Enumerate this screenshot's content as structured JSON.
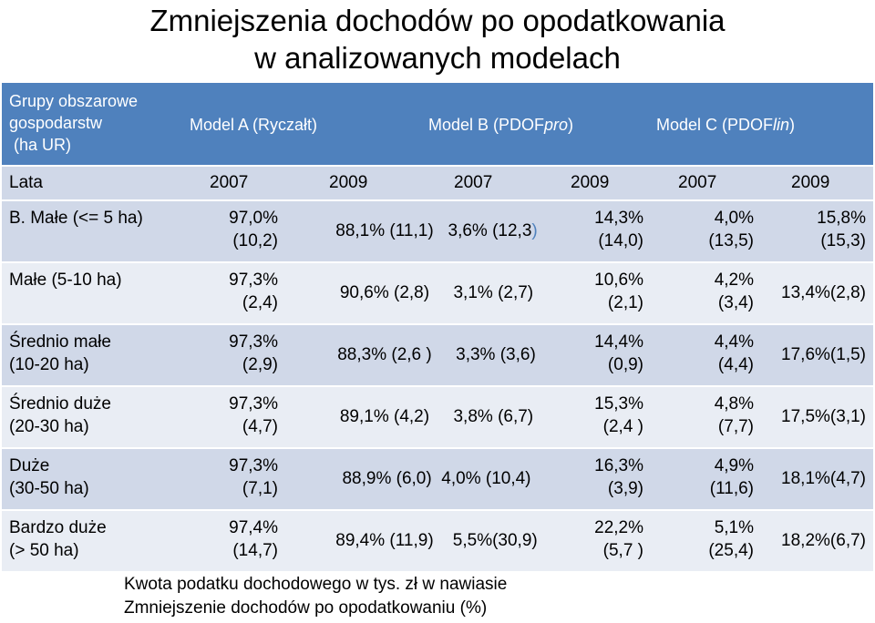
{
  "title": {
    "line1": "Zmniejszenia dochodów po opodatkowania",
    "line2": "w analizowanych modelach"
  },
  "header": {
    "group_line1": "Grupy obszarowe",
    "group_line2": "gospodarstw",
    "group_line3": " (ha UR)",
    "model_a": "Model A (Ryczałt)",
    "model_b_prefix": "Model B (PDOF",
    "model_b_italic": "pro",
    "model_b_suffix": ")",
    "model_c_prefix": "Model C (PDOF",
    "model_c_italic": "lin",
    "model_c_suffix": ")"
  },
  "years": {
    "label": "Lata",
    "y1": "2007",
    "y2": "2009",
    "y3": "2007",
    "y4": "2009",
    "y5": "2007",
    "y6": "2009"
  },
  "rows": [
    {
      "label1": "B. Małe (<= 5 ha)",
      "label2": "",
      "a1_l1": "97,0%",
      "a1_l2": "(10,2)",
      "a2": "88,1% (11,1)",
      "b1": "3,6% (12,3",
      "b2_l1": "14,3%",
      "b2_l2": "(14,0)",
      "c1_l1": "4,0%",
      "c1_l2": "(13,5)",
      "c2_l1": "15,8%",
      "c2_l2": "(15,3)"
    },
    {
      "label1": "Małe (5-10 ha)",
      "label2": "",
      "a1_l1": "97,3%",
      "a1_l2": "(2,4)",
      "a2": "90,6% (2,8)",
      "b1": "3,1% (2,7)",
      "b2_l1": "10,6%",
      "b2_l2": "(2,1)",
      "c1_l1": "4,2%",
      "c1_l2": "(3,4)",
      "c2": "13,4%(2,8)"
    },
    {
      "label1": "Średnio małe",
      "label2": "(10-20 ha)",
      "a1_l1": "97,3%",
      "a1_l2": "(2,9)",
      "a2": "88,3% (2,6 )",
      "b1": "3,3% (3,6)",
      "b2_l1": "14,4%",
      "b2_l2": "(0,9)",
      "c1_l1": "4,4%",
      "c1_l2": "(4,4)",
      "c2": "17,6%(1,5)"
    },
    {
      "label1": "Średnio duże",
      "label2": "(20-30 ha)",
      "a1_l1": "97,3%",
      "a1_l2": "(4,7)",
      "a2": "89,1% (4,2)",
      "b1": "3,8% (6,7)",
      "b2_l1": "15,3%",
      "b2_l2": "(2,4 )",
      "c1_l1": "4,8%",
      "c1_l2": "(7,7)",
      "c2": "17,5%(3,1)"
    },
    {
      "label1": "Duże",
      "label2": "(30-50 ha)",
      "a1_l1": "97,3%",
      "a1_l2": "(7,1)",
      "a2": "88,9% (6,0)",
      "b1": "4,0% (10,4)",
      "b2_l1": "16,3%",
      "b2_l2": "(3,9)",
      "c1_l1": "4,9%",
      "c1_l2": "(11,6)",
      "c2": "18,1%(4,7)"
    },
    {
      "label1": "Bardzo duże",
      "label2": "(> 50 ha)",
      "a1_l1": "97,4%",
      "a1_l2": "(14,7)",
      "a2": "89,4% (11,9)",
      "b1": "5,5%(30,9)",
      "b2_l1": "22,2%",
      "b2_l2": "(5,7 )",
      "c1_l1": "5,1%",
      "c1_l2": "(25,4)",
      "c2": "18,2%(6,7)"
    }
  ],
  "row1_paren": ")",
  "footnotes": {
    "line1": "Kwota podatku dochodowego w tys. zł w nawiasie",
    "line2": "Zmniejszenie dochodów po opodatkowaniu (%)"
  },
  "colors": {
    "header_bg": "#4f81bd",
    "band_dark": "#d0d8e8",
    "band_light": "#e9edf4"
  }
}
